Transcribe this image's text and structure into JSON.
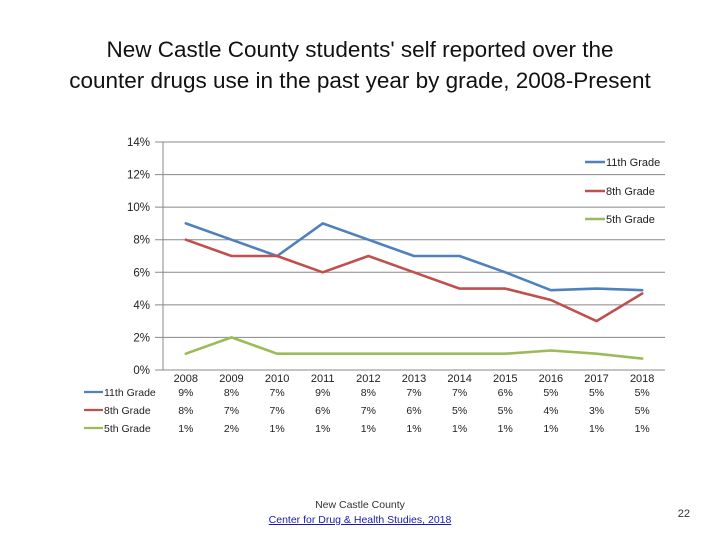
{
  "title": {
    "line1": "New Castle County students' self reported over the",
    "line2": "counter drugs use in the past year by grade, 2008-Present"
  },
  "footer": {
    "source": "New Castle County",
    "link_label": "Center for Drug & Health Studies, 2018"
  },
  "slide_number": "22",
  "colors": {
    "11th Grade": "#4f81bd",
    "8th Grade": "#c0504d",
    "5th Grade": "#9bbb59",
    "grid": "#888888"
  },
  "chart_data": {
    "type": "line",
    "title": "",
    "xlabel": "",
    "ylabel": "",
    "x": [
      "2008",
      "2009",
      "2010",
      "2011",
      "2012",
      "2013",
      "2014",
      "2015",
      "2016",
      "2017",
      "2018"
    ],
    "ylim": [
      0,
      14
    ],
    "y_ticks": [
      0,
      2,
      4,
      6,
      8,
      10,
      12,
      14
    ],
    "y_tick_labels": [
      "0%",
      "2%",
      "4%",
      "6%",
      "8%",
      "10%",
      "12%",
      "14%"
    ],
    "grid": true,
    "legend": "right",
    "data_table": true,
    "series": [
      {
        "name": "11th Grade",
        "values": [
          9,
          8,
          7,
          9,
          8,
          7,
          7,
          6,
          4.9,
          5,
          4.9
        ],
        "labels": [
          "9%",
          "8%",
          "7%",
          "9%",
          "8%",
          "7%",
          "7%",
          "6%",
          "5%",
          "5%",
          "5%"
        ]
      },
      {
        "name": "8th Grade",
        "values": [
          8,
          7,
          7,
          6,
          7,
          6,
          5,
          5,
          4.3,
          3,
          4.7
        ],
        "labels": [
          "8%",
          "7%",
          "7%",
          "6%",
          "7%",
          "6%",
          "5%",
          "5%",
          "4%",
          "3%",
          "5%"
        ]
      },
      {
        "name": "5th Grade",
        "values": [
          1,
          2,
          1,
          1,
          1,
          1,
          1,
          1,
          1.2,
          1,
          0.7
        ],
        "labels": [
          "1%",
          "2%",
          "1%",
          "1%",
          "1%",
          "1%",
          "1%",
          "1%",
          "1%",
          "1%",
          "1%"
        ]
      }
    ]
  }
}
